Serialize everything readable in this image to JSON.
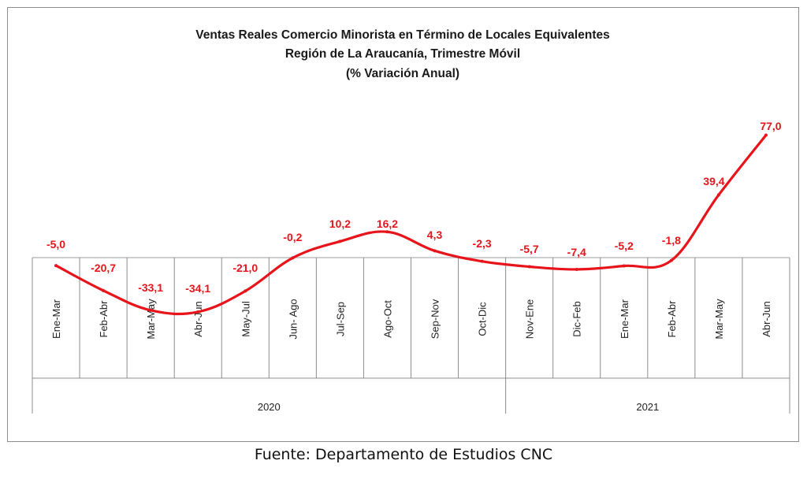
{
  "chart_data": {
    "type": "line",
    "title": [
      "Ventas Reales Comercio Minorista  en Término de Locales Equivalentes",
      "Región de La Araucanía, Trimestre Móvil",
      "(% Variación Anual)"
    ],
    "categories": [
      "Ene-Mar",
      "Feb-Abr",
      "Mar-May",
      "Abr-Jun",
      "May-Jul",
      "Jun- Ago",
      "Jul-Sep",
      "Ago-Oct",
      "Sep-Nov",
      "Oct-Dic",
      "Nov-Ene",
      "Dic-Feb",
      "Ene-Mar",
      "Feb-Abr",
      "Mar-May",
      "Abr-Jun"
    ],
    "groups": [
      {
        "label": "2020",
        "start": 0,
        "end": 9
      },
      {
        "label": "2021",
        "start": 10,
        "end": 15
      }
    ],
    "series": [
      {
        "values": [
          -5.0,
          -20.7,
          -33.1,
          -34.1,
          -21.0,
          -0.2,
          10.2,
          16.2,
          4.3,
          -2.3,
          -5.7,
          -7.4,
          -5.2,
          -1.8,
          39.4,
          77.0
        ],
        "labels": [
          "-5,0",
          "-20,7",
          "-33,1",
          "-34,1",
          "-21,0",
          "-0,2",
          "10,2",
          "16,2",
          "4,3",
          "-2,3",
          "-5,7",
          "-7,4",
          "-5,2",
          "-1,8",
          "39,4",
          "77,0"
        ],
        "color": "#e8141b"
      }
    ],
    "xlabel": "",
    "ylabel": "",
    "ylim": [
      -42,
      82
    ],
    "grid": false,
    "legend": "none"
  },
  "source": "Fuente: Departamento de Estudios CNC"
}
